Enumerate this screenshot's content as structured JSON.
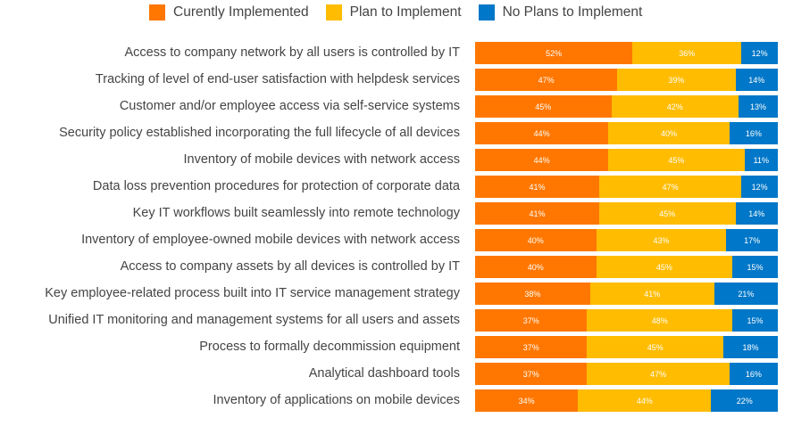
{
  "chart_data": {
    "type": "bar",
    "orientation": "horizontal",
    "stacked": true,
    "legend_position": "top",
    "grid": false,
    "xlim": [
      0,
      100
    ],
    "categories": [
      "Access to company network by all users is controlled by IT",
      "Tracking of level of end-user satisfaction with helpdesk services",
      "Customer and/or employee access via self-service systems",
      "Security policy established incorporating the full lifecycle of all devices",
      "Inventory of mobile devices with network access",
      "Data loss prevention procedures for protection of corporate data",
      "Key IT workflows built seamlessly into remote technology",
      "Inventory of employee-owned mobile devices with network access",
      "Access to company assets by all devices is controlled by IT",
      "Key employee-related process built into IT service management strategy",
      "Unified IT monitoring and management systems for all users and assets",
      "Process to formally decommission equipment",
      "Analytical dashboard tools",
      "Inventory of applications on mobile devices"
    ],
    "series": [
      {
        "name": "Curently Implemented",
        "color": "#FF7700",
        "values": [
          52,
          47,
          45,
          44,
          44,
          41,
          41,
          40,
          40,
          38,
          37,
          37,
          37,
          34
        ]
      },
      {
        "name": "Plan to Implement",
        "color": "#FFBC00",
        "values": [
          36,
          39,
          42,
          40,
          45,
          47,
          45,
          43,
          45,
          41,
          48,
          45,
          47,
          44
        ]
      },
      {
        "name": "No Plans to Implement",
        "color": "#0077C8",
        "values": [
          12,
          14,
          13,
          16,
          11,
          12,
          14,
          17,
          15,
          21,
          15,
          18,
          16,
          22
        ]
      }
    ],
    "value_suffix": "%"
  }
}
